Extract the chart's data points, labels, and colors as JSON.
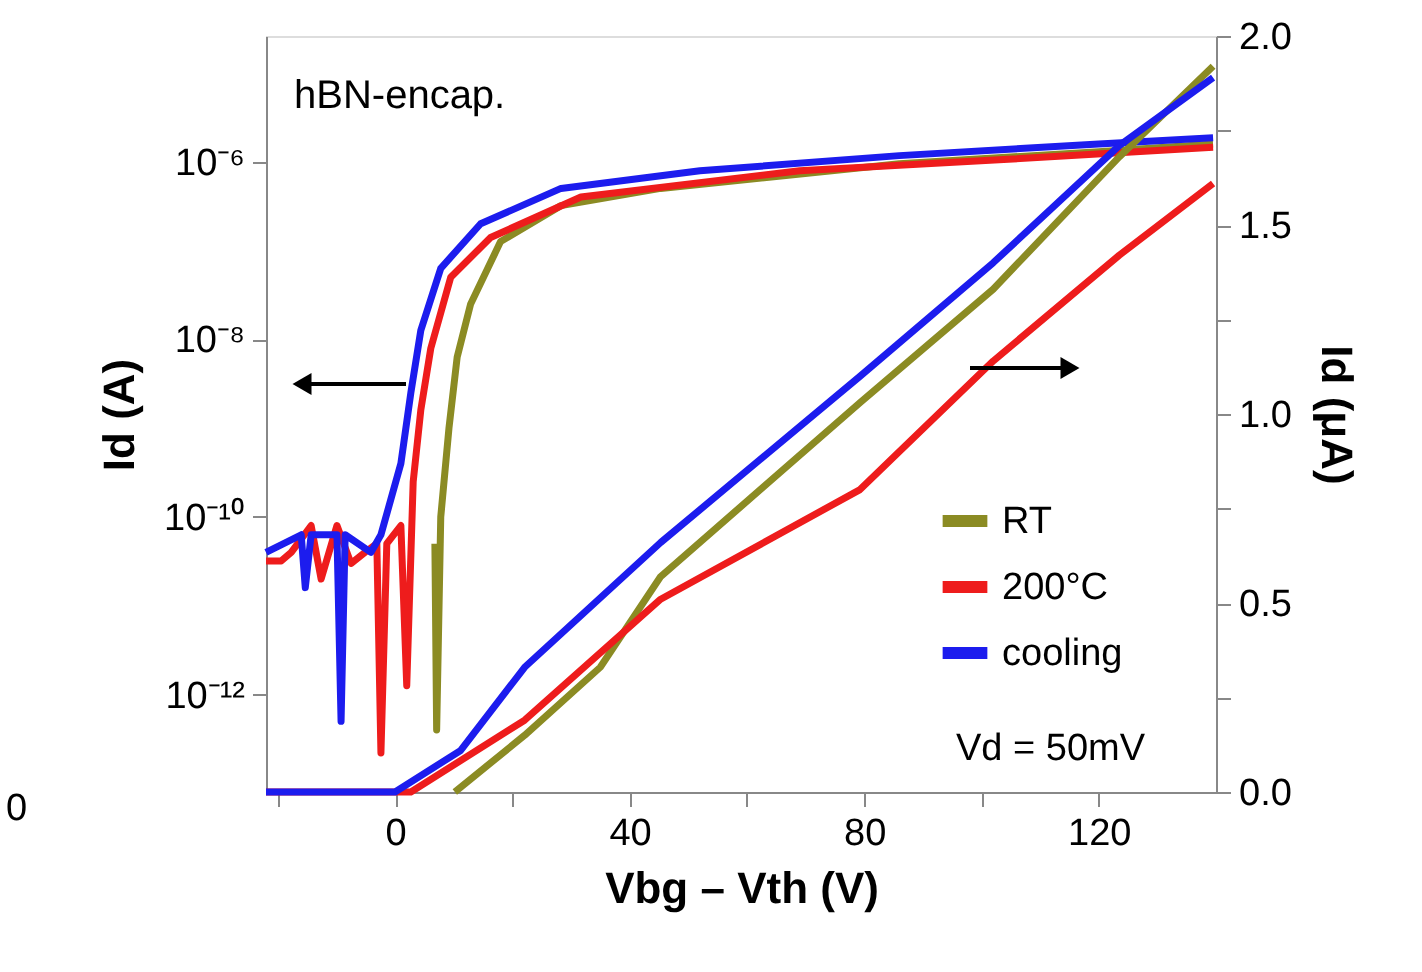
{
  "chart_data": {
    "type": "line",
    "xlabel": "Vbg – Vth (V)",
    "ylabel": "Id (A)",
    "y2label": "Id (μA)",
    "log": "y",
    "xlim": [
      -22,
      140
    ],
    "xticks": [
      {
        "value": -20,
        "label": null
      },
      0,
      {
        "value": 20,
        "label": null
      },
      40,
      {
        "value": 60,
        "label": null
      },
      80,
      {
        "value": 100,
        "label": null
      },
      120
    ],
    "ylim": [
      8e-14,
      2.6e-05
    ],
    "yticks": [
      {
        "value": 1e-12,
        "label": "10⁻¹²"
      },
      {
        "value": 1e-10,
        "label": "10⁻¹⁰"
      },
      {
        "value": 1e-08,
        "label": "10⁻⁸"
      },
      {
        "value": 1e-06,
        "label": "10⁻⁶"
      }
    ],
    "y2lim": [
      0,
      2
    ],
    "y2ticks": [
      {
        "value": 0,
        "label": "0.0"
      },
      {
        "value": 0.25,
        "label": null
      },
      {
        "value": 0.5,
        "label": "0.5"
      },
      {
        "value": 0.75,
        "label": null
      },
      {
        "value": 1,
        "label": "1.0"
      },
      {
        "value": 1.25,
        "label": null
      },
      {
        "value": 1.5,
        "label": "1.5"
      },
      {
        "value": 1.75,
        "label": null
      },
      {
        "value": 2,
        "label": "2.0"
      }
    ],
    "grid": false,
    "legend": "bottom right",
    "line_style": "solid",
    "marker": "none",
    "annotations": [
      "hBN-encap.",
      "Vd = 50mV",
      "0"
    ],
    "series": [
      {
        "name": "RT",
        "color": "#8b8b23",
        "axis": "y",
        "x": [
          6.8,
          7.1,
          7.8,
          9.2,
          10.6,
          12.9,
          18,
          28.3,
          45.3,
          86,
          120,
          139.5
        ],
        "values": [
          5e-11,
          4e-13,
          1e-10,
          1e-09,
          6.3e-09,
          2.5e-08,
          1.26e-07,
          3.2e-07,
          5e-07,
          9.5e-07,
          1.29e-06,
          1.58e-06
        ]
      },
      {
        "name": "200°C",
        "color": "#ee1c1c",
        "axis": "y",
        "x": [
          -22,
          -19.4,
          -17.7,
          -14.3,
          -12.6,
          -9.9,
          -7.5,
          -5.1,
          -3.1,
          -2.4,
          -1.4,
          1,
          2,
          3.1,
          4.4,
          6.1,
          9.5,
          16.3,
          31.7,
          69,
          103,
          139.5
        ],
        "values": [
          3.2e-11,
          3.2e-11,
          4e-11,
          8e-11,
          2e-11,
          8e-11,
          3e-11,
          4e-11,
          5e-11,
          2.2e-13,
          5e-11,
          8e-11,
          1.26e-12,
          2.5e-10,
          1.6e-09,
          7.9e-09,
          5e-08,
          1.4e-07,
          4e-07,
          7.9e-07,
          1.05e-06,
          1.45e-06
        ]
      },
      {
        "name": "cooling",
        "color": "#1c1cee",
        "axis": "y",
        "x": [
          -22,
          -16,
          -15.3,
          -14.3,
          -9.9,
          -9.2,
          -8.5,
          -4.1,
          -2.4,
          1,
          2.7,
          4.4,
          7.8,
          14.6,
          28.3,
          52,
          86,
          120,
          139.5
        ],
        "values": [
          4e-11,
          6.3e-11,
          1.6e-11,
          6.3e-11,
          6.3e-11,
          5e-13,
          6.3e-11,
          4e-11,
          6.3e-11,
          4e-10,
          2.5e-09,
          1.26e-08,
          6.3e-08,
          2e-07,
          5e-07,
          7.9e-07,
          1.17e-06,
          1.58e-06,
          1.86e-06
        ]
      },
      {
        "color": "#8b8b23",
        "axis": "y2",
        "x": [
          10.2,
          22.1,
          35,
          45.3,
          79.3,
          102,
          123.5,
          139.5
        ],
        "values": [
          0,
          0.15,
          0.33,
          0.57,
          1.03,
          1.33,
          1.68,
          1.92
        ]
      },
      {
        "color": "#ee1c1c",
        "axis": "y2",
        "x": [
          -22,
          2.7,
          22.1,
          45.3,
          79.3,
          102,
          123.5,
          139.5
        ],
        "values": [
          0,
          0,
          0.19,
          0.51,
          0.8,
          1.14,
          1.42,
          1.61
        ]
      },
      {
        "color": "#1c1cee",
        "axis": "y2",
        "x": [
          -22,
          0,
          11.2,
          22.1,
          45.3,
          79.3,
          102,
          123.5,
          139.5
        ],
        "values": [
          0,
          0,
          0.11,
          0.33,
          0.66,
          1.1,
          1.4,
          1.71,
          1.89
        ]
      }
    ]
  }
}
